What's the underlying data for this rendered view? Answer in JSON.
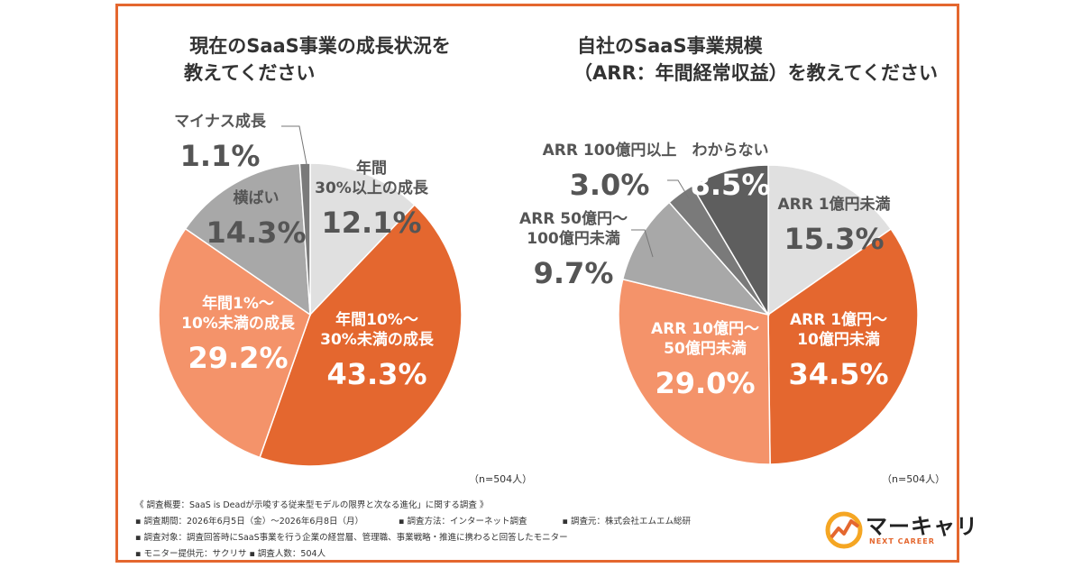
{
  "chart_data": [
    {
      "type": "pie",
      "title": [
        "現在のSaaS事業の成長状況を",
        "教えてください"
      ],
      "n_label": "（n=504人）",
      "slices": [
        {
          "label": [
            "年間",
            "30%以上の成長"
          ],
          "value": 12.1,
          "value_text": "12.1%",
          "color": "#e0e0e0"
        },
        {
          "label": [
            "年間10%〜",
            "30%未満の成長"
          ],
          "value": 43.3,
          "value_text": "43.3%",
          "color": "#e4672f"
        },
        {
          "label": [
            "年間1%〜",
            "10%未満の成長"
          ],
          "value": 29.2,
          "value_text": "29.2%",
          "color": "#f4936a"
        },
        {
          "label": [
            "横ばい"
          ],
          "value": 14.3,
          "value_text": "14.3%",
          "color": "#a8a8a8"
        },
        {
          "label": [
            "マイナス成長"
          ],
          "value": 1.1,
          "value_text": "1.1%",
          "color": "#7a7a7a"
        }
      ]
    },
    {
      "type": "pie",
      "title": [
        "自社のSaaS事業規模",
        "（ARR：年間経常収益）を教えてください"
      ],
      "n_label": "（n=504人）",
      "slices": [
        {
          "label": [
            "ARR 1億円未満"
          ],
          "value": 15.3,
          "value_text": "15.3%",
          "color": "#e0e0e0"
        },
        {
          "label": [
            "ARR 1億円〜",
            "10億円未満"
          ],
          "value": 34.5,
          "value_text": "34.5%",
          "color": "#e4672f"
        },
        {
          "label": [
            "ARR 10億円〜",
            "50億円未満"
          ],
          "value": 29.0,
          "value_text": "29.0%",
          "color": "#f4936a"
        },
        {
          "label": [
            "ARR 50億円〜",
            "100億円未満"
          ],
          "value": 9.7,
          "value_text": "9.7%",
          "color": "#a8a8a8"
        },
        {
          "label": [
            "ARR 100億円以上"
          ],
          "value": 3.0,
          "value_text": "3.0%",
          "color": "#7a7a7a"
        },
        {
          "label": [
            "わからない"
          ],
          "value": 8.5,
          "value_text": "8.5%",
          "color": "#5e5e5e"
        }
      ]
    }
  ],
  "footer": {
    "line1": "《 調査概要：SaaS is Deadが示唆する従来型モデルの限界と次なる進化」に関する調査 》",
    "period": "▪ 調査期間：2026年6月5日（金）〜2026年6月8日（月）",
    "method": "▪ 調査方法：インターネット調査",
    "source": "▪ 調査元：株式会社エムエム総研",
    "target": "▪ 調査対象：調査回答時にSaaS事業を行う企業の経営層、管理職、事業戦略・推進に携わると回答したモニター",
    "provider": "▪ モニター提供元：サクリサ ▪ 調査人数：504人"
  },
  "logo": {
    "name": "マーキャリ",
    "sub": "NEXT CAREER",
    "color": "#e4672f"
  }
}
